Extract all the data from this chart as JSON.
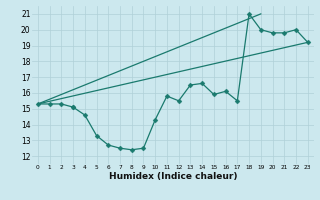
{
  "xlabel": "Humidex (Indice chaleur)",
  "bg_color": "#cce8ee",
  "line_color": "#1a7a6e",
  "grid_color": "#b0d0d8",
  "xlim": [
    -0.5,
    23.5
  ],
  "ylim": [
    11.5,
    21.5
  ],
  "yticks": [
    12,
    13,
    14,
    15,
    16,
    17,
    18,
    19,
    20,
    21
  ],
  "xticks": [
    0,
    1,
    2,
    3,
    4,
    5,
    6,
    7,
    8,
    9,
    10,
    11,
    12,
    13,
    14,
    15,
    16,
    17,
    18,
    19,
    20,
    21,
    22,
    23
  ],
  "line1_x": [
    0,
    1,
    2,
    3
  ],
  "line1_y": [
    15.3,
    15.3,
    15.3,
    15.1
  ],
  "line2_x": [
    3,
    4,
    5,
    6,
    7,
    8,
    9,
    10,
    11,
    12,
    13,
    14,
    15,
    16,
    17,
    18,
    19,
    20,
    21,
    22,
    23
  ],
  "line2_y": [
    15.1,
    14.6,
    13.3,
    12.7,
    12.5,
    12.4,
    12.5,
    14.3,
    15.8,
    15.5,
    16.5,
    16.6,
    15.9,
    16.1,
    15.5,
    21.0,
    20.0,
    19.8,
    19.8,
    20.0,
    19.2
  ],
  "line3_x": [
    0,
    23
  ],
  "line3_y": [
    15.3,
    19.2
  ],
  "line4_x": [
    0,
    19
  ],
  "line4_y": [
    15.3,
    21.0
  ],
  "markersize": 2.5,
  "linewidth": 0.9
}
